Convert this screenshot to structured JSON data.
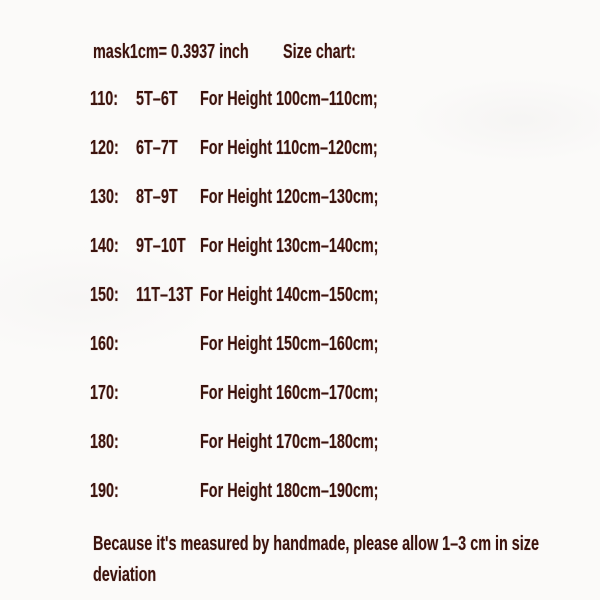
{
  "page": {
    "background_color": "#fbfaf9",
    "text_color": "#3b130d"
  },
  "header": {
    "conversion": "mask1cm= 0.3937 inch",
    "title": "Size chart:"
  },
  "rows": [
    {
      "size": "110:",
      "age": "5T–6T",
      "height": "For Height 100cm–110cm;"
    },
    {
      "size": "120:",
      "age": "6T–7T",
      "height": "For Height 110cm–120cm;"
    },
    {
      "size": "130:",
      "age": "8T–9T",
      "height": "For Height 120cm–130cm;"
    },
    {
      "size": "140:",
      "age": "9T–10T",
      "height": "For Height 130cm–140cm;"
    },
    {
      "size": "150:",
      "age": "11T–13T",
      "height": "For Height 140cm–150cm;"
    },
    {
      "size": "160:",
      "age": "",
      "height": "For Height 150cm–160cm;"
    },
    {
      "size": "170:",
      "age": "",
      "height": "For Height 160cm–170cm;"
    },
    {
      "size": "180:",
      "age": "",
      "height": "For Height 170cm–180cm;"
    },
    {
      "size": "190:",
      "age": "",
      "height": "For Height 180cm–190cm;"
    }
  ],
  "footer": {
    "note": "Because it's measured by handmade, please allow 1–3 cm in size deviation"
  }
}
